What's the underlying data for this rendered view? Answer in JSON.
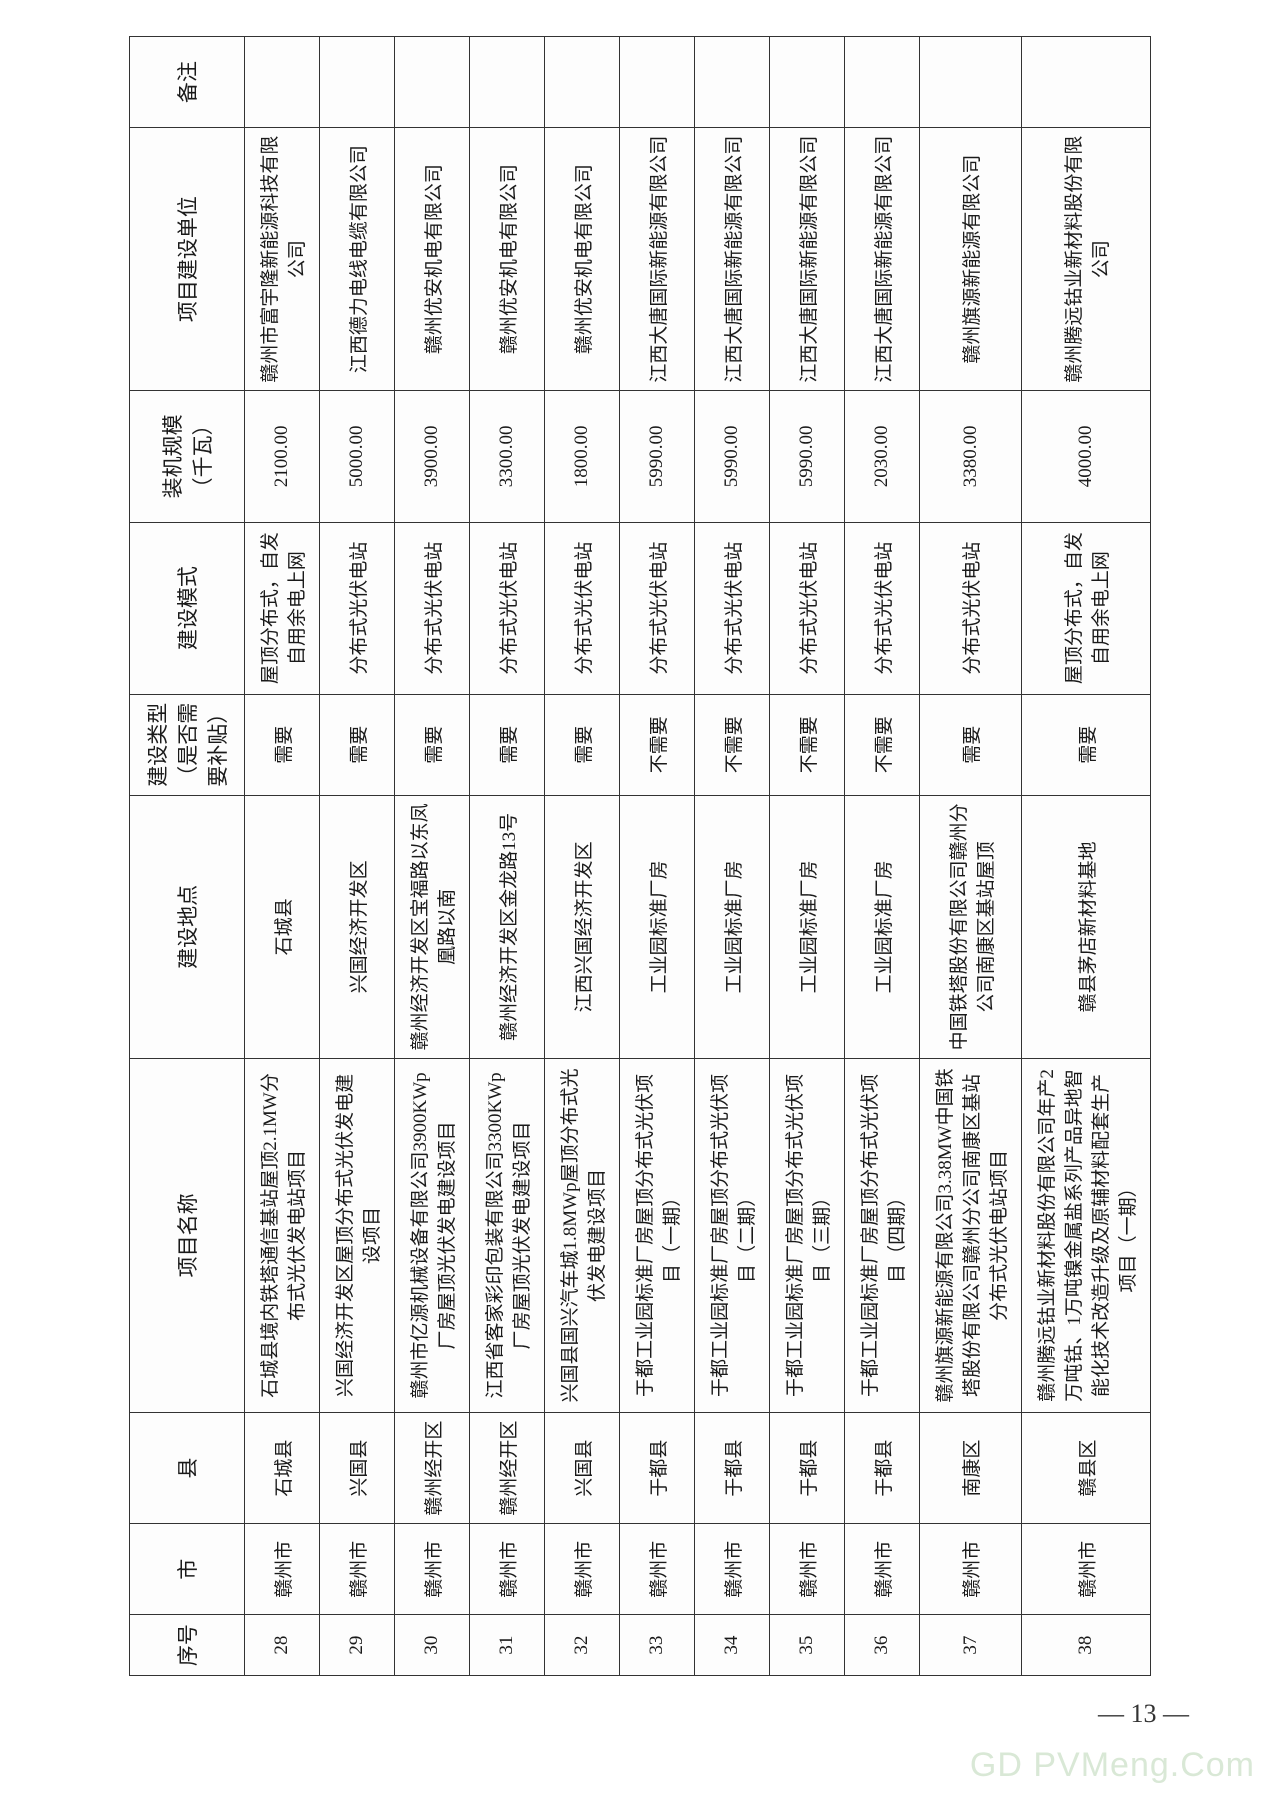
{
  "table": {
    "headers": {
      "seq": "序号",
      "city": "市",
      "county": "县",
      "name": "项目名称",
      "addr": "建设地点",
      "type": "建设类型（是否需要补贴）",
      "mode": "建设模式",
      "cap": "装机规模（千瓦）",
      "unit": "项目建设单位",
      "remark": "备注"
    },
    "rows": [
      {
        "seq": "28",
        "city": "赣州市",
        "county": "石城县",
        "name": "石城县境内铁塔通信基站屋顶2.1MW分布式光伏发电站项目",
        "addr": "石城县",
        "type": "需要",
        "mode": "屋顶分布式，自发自用余电上网",
        "cap": "2100.00",
        "unit": "赣州市富宇隆新能源科技有限公司",
        "remark": ""
      },
      {
        "seq": "29",
        "city": "赣州市",
        "county": "兴国县",
        "name": "兴国经济开发区屋顶分布式光伏发电建设项目",
        "addr": "兴国经济开发区",
        "type": "需要",
        "mode": "分布式光伏电站",
        "cap": "5000.00",
        "unit": "江西德力电线电缆有限公司",
        "remark": ""
      },
      {
        "seq": "30",
        "city": "赣州市",
        "county": "赣州经开区",
        "name": "赣州市亿源机械设备有限公司3900KWp厂房屋顶光伏发电建设项目",
        "addr": "赣州经济开发区宝福路以东凤凰路以南",
        "type": "需要",
        "mode": "分布式光伏电站",
        "cap": "3900.00",
        "unit": "赣州优安机电有限公司",
        "remark": ""
      },
      {
        "seq": "31",
        "city": "赣州市",
        "county": "赣州经开区",
        "name": "江西省客家彩印包装有限公司3300KWp厂房屋顶光伏发电建设项目",
        "addr": "赣州经济开发区金龙路13号",
        "type": "需要",
        "mode": "分布式光伏电站",
        "cap": "3300.00",
        "unit": "赣州优安机电有限公司",
        "remark": ""
      },
      {
        "seq": "32",
        "city": "赣州市",
        "county": "兴国县",
        "name": "兴国县国兴汽车城1.8MWp屋顶分布式光伏发电建设项目",
        "addr": "江西兴国经济开发区",
        "type": "需要",
        "mode": "分布式光伏电站",
        "cap": "1800.00",
        "unit": "赣州优安机电有限公司",
        "remark": ""
      },
      {
        "seq": "33",
        "city": "赣州市",
        "county": "于都县",
        "name": "于都工业园标准厂房屋顶分布式光伏项目（一期）",
        "addr": "工业园标准厂房",
        "type": "不需要",
        "mode": "分布式光伏电站",
        "cap": "5990.00",
        "unit": "江西大唐国际新能源有限公司",
        "remark": ""
      },
      {
        "seq": "34",
        "city": "赣州市",
        "county": "于都县",
        "name": "于都工业园标准厂房屋顶分布式光伏项目（二期）",
        "addr": "工业园标准厂房",
        "type": "不需要",
        "mode": "分布式光伏电站",
        "cap": "5990.00",
        "unit": "江西大唐国际新能源有限公司",
        "remark": ""
      },
      {
        "seq": "35",
        "city": "赣州市",
        "county": "于都县",
        "name": "于都工业园标准厂房屋顶分布式光伏项目（三期）",
        "addr": "工业园标准厂房",
        "type": "不需要",
        "mode": "分布式光伏电站",
        "cap": "5990.00",
        "unit": "江西大唐国际新能源有限公司",
        "remark": ""
      },
      {
        "seq": "36",
        "city": "赣州市",
        "county": "于都县",
        "name": "于都工业园标准厂房屋顶分布式光伏项目（四期）",
        "addr": "工业园标准厂房",
        "type": "不需要",
        "mode": "分布式光伏电站",
        "cap": "2030.00",
        "unit": "江西大唐国际新能源有限公司",
        "remark": ""
      },
      {
        "seq": "37",
        "city": "赣州市",
        "county": "南康区",
        "name": "赣州旗源新能源有限公司3.38MW中国铁塔股份有限公司赣州分公司南康区基站分布式光伏电站项目",
        "addr": "中国铁塔股份有限公司赣州分公司南康区基站屋顶",
        "type": "需要",
        "mode": "分布式光伏电站",
        "cap": "3380.00",
        "unit": "赣州旗源新能源有限公司",
        "remark": ""
      },
      {
        "seq": "38",
        "city": "赣州市",
        "county": "赣县区",
        "name": "赣州腾远钴业新材料股份有限公司年产2万吨钴、1万吨镍金属盐系列产品异地智能化技术改造升级及原辅材料配套生产项目（一期）",
        "addr": "赣县茅店新材料基地",
        "type": "需要",
        "mode": "屋顶分布式，自发自用余电上网",
        "cap": "4000.00",
        "unit": "赣州腾远钴业新材料股份有限公司",
        "remark": ""
      }
    ]
  },
  "page_number": "— 13 —",
  "watermark": "GD PVMeng.Com"
}
